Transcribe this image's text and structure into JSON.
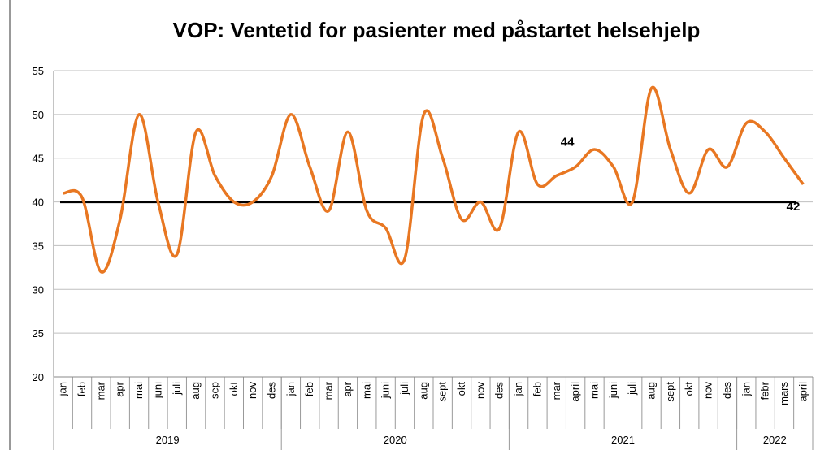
{
  "chart_data": {
    "type": "line",
    "title": "VOP: Ventetid for pasienter med påstartet helsehjelp",
    "categories": [
      "jan",
      "feb",
      "mar",
      "apr",
      "mai",
      "juni",
      "juli",
      "aug",
      "sep",
      "okt",
      "nov",
      "des",
      "jan",
      "feb",
      "mar",
      "apr",
      "mai",
      "juni",
      "juli",
      "aug",
      "sept",
      "okt",
      "nov",
      "des",
      "jan",
      "feb",
      "mar",
      "april",
      "mai",
      "juni",
      "juli",
      "aug",
      "sept",
      "okt",
      "nov",
      "des",
      "jan",
      "febr",
      "mars",
      "april"
    ],
    "groups": [
      {
        "label": "2019",
        "span": 12
      },
      {
        "label": "2020",
        "span": 12
      },
      {
        "label": "2021",
        "span": 12
      },
      {
        "label": "2022",
        "span": 4
      }
    ],
    "series": [
      {
        "name": "Ventetid",
        "color": "#e87722",
        "values": [
          41,
          40.5,
          32,
          38,
          50,
          40,
          34,
          48,
          43,
          40,
          40,
          43,
          50,
          44,
          39,
          48,
          39,
          37,
          33.5,
          50,
          45,
          38,
          40,
          37,
          48,
          42,
          43,
          44,
          46,
          44,
          40,
          53,
          46,
          41,
          46,
          44,
          49,
          48,
          45,
          42
        ],
        "value_labels": [
          null,
          null,
          null,
          null,
          null,
          null,
          null,
          null,
          null,
          null,
          null,
          null,
          null,
          null,
          null,
          null,
          null,
          null,
          null,
          null,
          null,
          null,
          null,
          null,
          null,
          null,
          null,
          "44",
          null,
          null,
          null,
          null,
          null,
          null,
          null,
          null,
          null,
          null,
          null,
          "42"
        ]
      }
    ],
    "reference_line": {
      "value": 40,
      "color": "#000000"
    },
    "ylim": [
      20,
      55
    ],
    "yticks": [
      20,
      25,
      30,
      35,
      40,
      45,
      50,
      55
    ],
    "grid": true
  }
}
